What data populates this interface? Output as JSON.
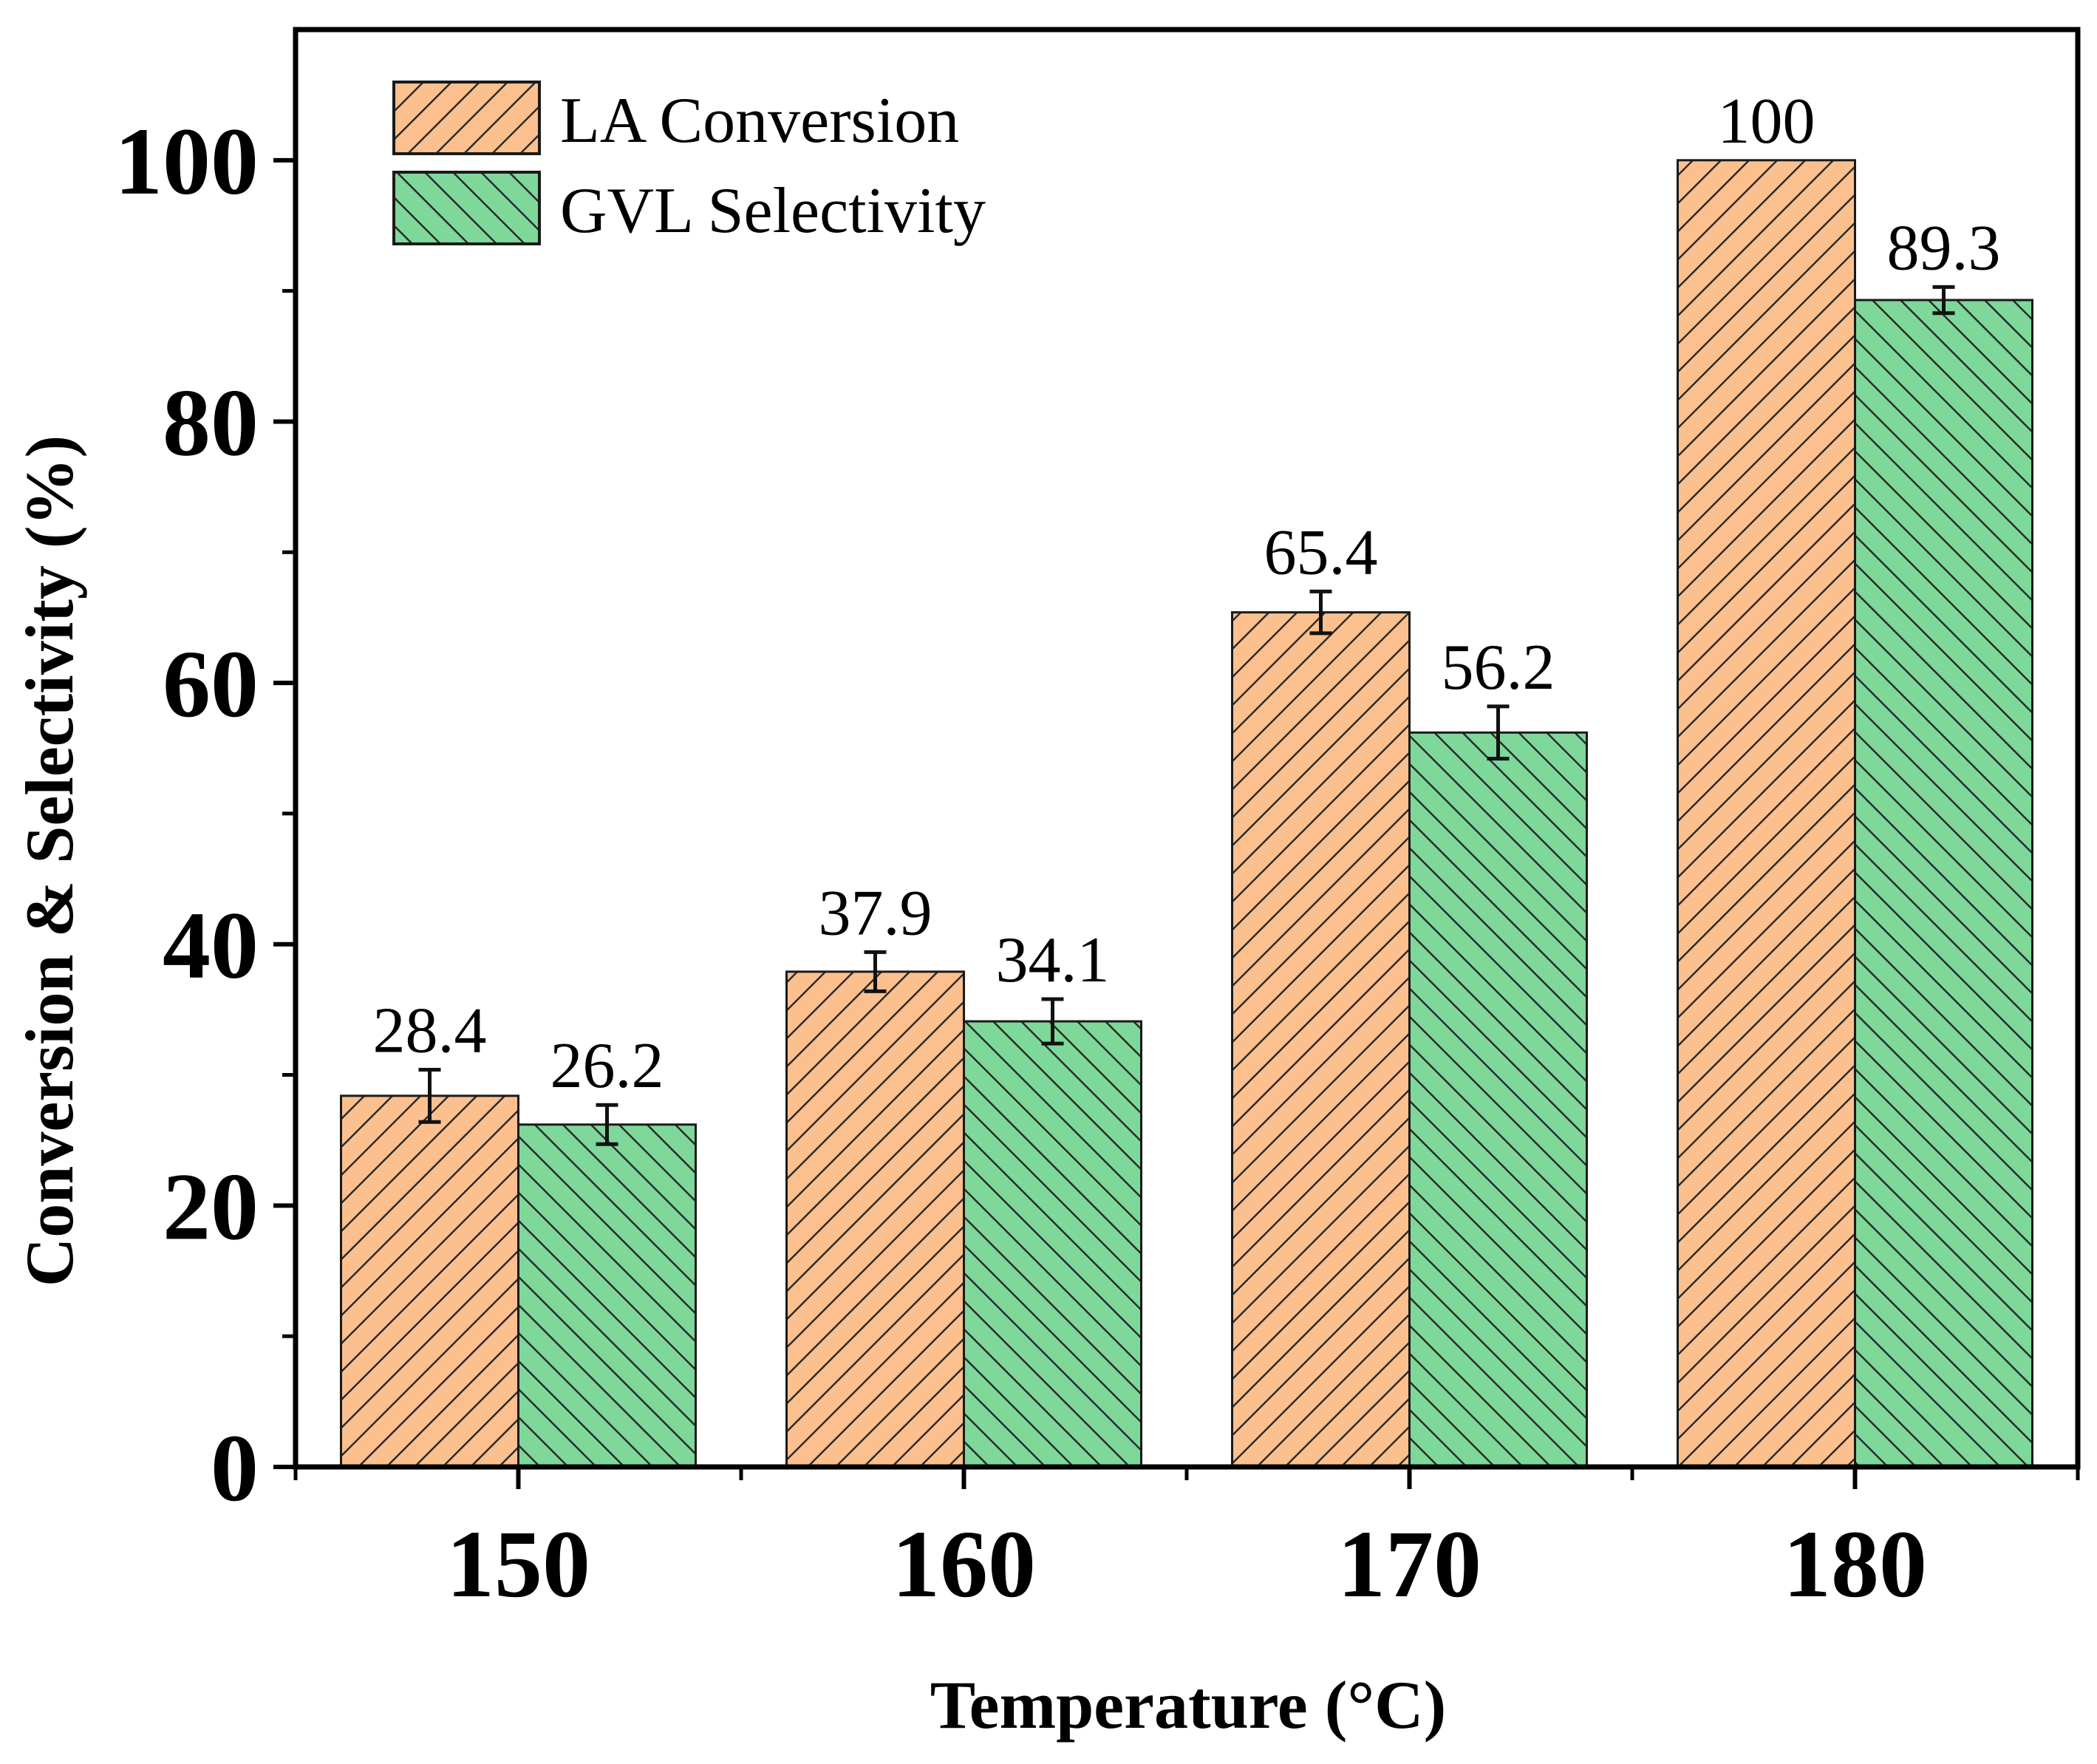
{
  "chart_data": {
    "type": "bar",
    "categories": [
      "150",
      "160",
      "170",
      "180"
    ],
    "series": [
      {
        "name": "LA Conversion",
        "values": [
          28.4,
          37.9,
          65.4,
          100
        ],
        "labels": [
          "28.4",
          "37.9",
          "65.4",
          "100"
        ],
        "errors": [
          2.0,
          1.5,
          1.6,
          0
        ],
        "color": "#fcc08e",
        "hatch": "forward"
      },
      {
        "name": "GVL Selectivity",
        "values": [
          26.2,
          34.1,
          56.2,
          89.3
        ],
        "labels": [
          "26.2",
          "34.1",
          "56.2",
          "89.3"
        ],
        "errors": [
          1.5,
          1.7,
          2.0,
          1.0
        ],
        "color": "#7ed89a",
        "hatch": "backward"
      }
    ],
    "xlabel": "Temperature (°C)",
    "ylabel": "Conversion & Selectivity (%)",
    "ylim": [
      0,
      110
    ],
    "yticks": [
      "0",
      "20",
      "40",
      "60",
      "80",
      "100"
    ],
    "legend_position": "top-left",
    "grid": false
  }
}
